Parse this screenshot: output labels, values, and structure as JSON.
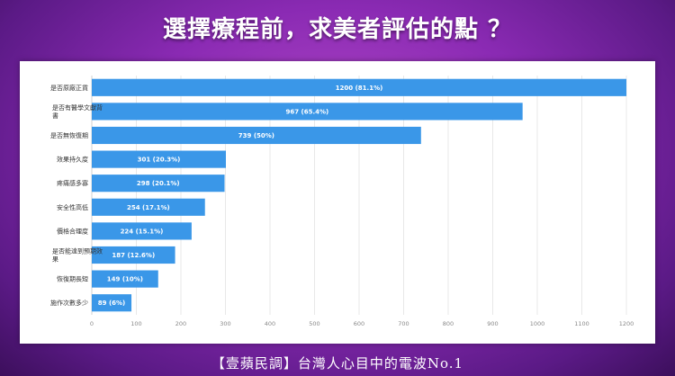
{
  "title": "選擇療程前，求美者評估的點 ？",
  "footer": "【壹蘋民調】台灣人心目中的電波No.1",
  "colors": {
    "bar": "#3a97e8",
    "grid": "#e3e3e3"
  },
  "chart_data": {
    "type": "bar",
    "orientation": "horizontal",
    "categories": [
      [
        "是否原廠正貨"
      ],
      [
        "是否有醫學文獻背",
        "書"
      ],
      [
        "是否無恢復期"
      ],
      [
        "效果持久度"
      ],
      [
        "疼痛感多寡"
      ],
      [
        "安全性高低"
      ],
      [
        "價格合理度"
      ],
      [
        "是否能達到預期效",
        "果"
      ],
      [
        "恢復期長短"
      ],
      [
        "施作次數多少"
      ]
    ],
    "values": [
      1200,
      967,
      739,
      301,
      298,
      254,
      224,
      187,
      149,
      89
    ],
    "data_labels": [
      "1200 (81.1%)",
      "967 (65.4%)",
      "739 (50%)",
      "301 (20.3%)",
      "298 (20.1%)",
      "254 (17.1%)",
      "224 (15.1%)",
      "187 (12.6%)",
      "149 (10%)",
      "89 (6%)"
    ],
    "xlim": [
      0,
      1200
    ],
    "xticks": [
      0,
      100,
      200,
      300,
      400,
      500,
      600,
      700,
      800,
      900,
      1000,
      1100,
      1200
    ],
    "grid": true,
    "legend": "none"
  }
}
